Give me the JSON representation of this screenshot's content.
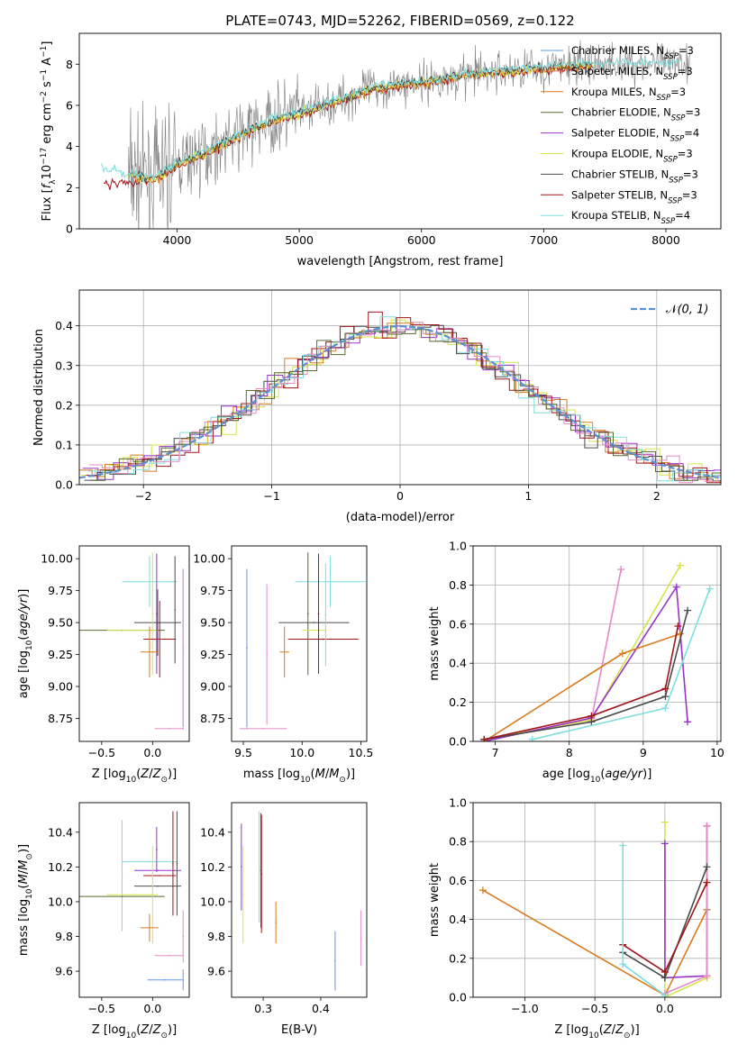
{
  "title": "PLATE=0743, MJD=52262, FIBERID=0569, z=0.122",
  "colors": {
    "chabrier_miles": "#6495ED",
    "salpeter_miles": "#E07A5F",
    "kroupa_miles": "#D97B1E",
    "chabrier_elodie": "#556B2F",
    "salpeter_elodie": "#9932CC",
    "kroupa_elodie": "#D7E34B",
    "chabrier_stelib": "#4B4B4B",
    "salpeter_stelib": "#A0151A",
    "kroupa_stelib": "#7FDDDD",
    "pink": "#E38AC8",
    "data": "#7F7F7F",
    "gauss": "#5B8FD4"
  },
  "chart_data": [
    {
      "id": "spectrum",
      "type": "line",
      "xlabel": "wavelength [Angstrom, rest frame]",
      "ylabel": "Flux [f_λ 10^-17 erg cm^-2 s^-1 A^-1]",
      "xlim": [
        3200,
        8450
      ],
      "ylim": [
        0,
        9.5
      ],
      "xticks": [
        "4000",
        "5000",
        "6000",
        "7000",
        "8000"
      ],
      "yticks": [
        "0",
        "2",
        "4",
        "6",
        "8"
      ],
      "legend": [
        {
          "label": "Chabrier MILES, N_SSP=3",
          "color_key": "chabrier_miles"
        },
        {
          "label": "Salpeter MILES, N_SSP=3",
          "color_key": "salpeter_miles"
        },
        {
          "label": "Kroupa MILES, N_SSP=3",
          "color_key": "kroupa_miles"
        },
        {
          "label": "Chabrier ELODIE, N_SSP=3",
          "color_key": "chabrier_elodie"
        },
        {
          "label": "Salpeter ELODIE, N_SSP=4",
          "color_key": "salpeter_elodie"
        },
        {
          "label": "Kroupa ELODIE, N_SSP=3",
          "color_key": "kroupa_elodie"
        },
        {
          "label": "Chabrier STELIB, N_SSP=3",
          "color_key": "chabrier_stelib"
        },
        {
          "label": "Salpeter STELIB, N_SSP=3",
          "color_key": "salpeter_stelib"
        },
        {
          "label": "Kroupa STELIB, N_SSP=4",
          "color_key": "kroupa_stelib"
        }
      ],
      "model_continuum": {
        "x": [
          3400,
          3600,
          3800,
          4000,
          4200,
          4400,
          4600,
          4800,
          5000,
          5200,
          5400,
          5600,
          5800,
          6000,
          6200,
          6400,
          6600,
          6800,
          7000,
          7200,
          7400
        ],
        "y": [
          2.8,
          2.6,
          2.4,
          3.1,
          3.6,
          4.2,
          4.8,
          5.3,
          5.6,
          6.0,
          6.4,
          6.8,
          7.0,
          7.1,
          7.3,
          7.5,
          7.6,
          7.7,
          7.8,
          7.9,
          8.0
        ]
      }
    },
    {
      "id": "residuals",
      "type": "line",
      "xlabel": "(data-model)/error",
      "ylabel": "Normed distribution",
      "xlim": [
        -2.5,
        2.5
      ],
      "ylim": [
        0,
        0.49
      ],
      "xticks": [
        "−2",
        "−1",
        "0",
        "1",
        "2"
      ],
      "yticks": [
        "0.0",
        "0.1",
        "0.2",
        "0.3",
        "0.4"
      ],
      "grid": true,
      "legend": "N(0,1)",
      "gaussian": {
        "mu": 0,
        "sigma": 1
      }
    },
    {
      "id": "age_vs_Z",
      "type": "scatter",
      "xlabel": "Z [log10(Z/Z⊙)]",
      "ylabel": "age [log10(age/yr)]",
      "xlim": [
        -0.72,
        0.36
      ],
      "ylim": [
        8.57,
        10.1
      ],
      "xticks": [
        "−0.5",
        "0.0"
      ],
      "yticks": [
        "8.75",
        "9.00",
        "9.25",
        "9.50",
        "9.75",
        "10.00"
      ],
      "points": [
        {
          "x": -0.03,
          "y": 9.82,
          "xerr": 0.27,
          "yerr": 0.2,
          "c": "kroupa_stelib"
        },
        {
          "x": 0.05,
          "y": 9.5,
          "xerr": 0.23,
          "yerr": 0.26,
          "c": "chabrier_stelib"
        },
        {
          "x": -0.3,
          "y": 9.44,
          "xerr": 0.42,
          "yerr": 0.0,
          "c": "chabrier_elodie"
        },
        {
          "x": -0.2,
          "y": 9.44,
          "xerr": 0.25,
          "yerr": 0.0,
          "c": "kroupa_elodie"
        },
        {
          "x": 0.0,
          "y": 9.57,
          "xerr": 0.0,
          "yerr": 0.48,
          "c": "kroupa_elodie"
        },
        {
          "x": 0.07,
          "y": 9.37,
          "xerr": 0.16,
          "yerr": 0.3,
          "c": "salpeter_stelib"
        },
        {
          "x": 0.04,
          "y": 9.57,
          "xerr": 0.0,
          "yerr": 0.47,
          "c": "salpeter_elodie"
        },
        {
          "x": -0.03,
          "y": 9.27,
          "xerr": 0.09,
          "yerr": 0.2,
          "c": "kroupa_miles"
        },
        {
          "x": 0.3,
          "y": 9.3,
          "xerr": 0.0,
          "yerr": 0.62,
          "c": "chabrier_miles"
        },
        {
          "x": 0.3,
          "y": 8.67,
          "xerr": 0.0,
          "yerr": 0.0,
          "c": "chabrier_miles"
        },
        {
          "x": 0.16,
          "y": 8.67,
          "xerr": 0.14,
          "yerr": 0.0,
          "c": "pink"
        },
        {
          "x": 0.3,
          "y": 9.3,
          "xerr": 0.0,
          "yerr": 0.62,
          "c": "pink"
        },
        {
          "x": 0.22,
          "y": 9.6,
          "xerr": 0.0,
          "yerr": 0.42,
          "c": "chabrier_stelib"
        }
      ]
    },
    {
      "id": "age_vs_mass",
      "type": "scatter",
      "xlabel": "mass [log10(M/M⊙)]",
      "ylabel": "",
      "xlim": [
        9.4,
        10.55
      ],
      "ylim": [
        8.57,
        10.1
      ],
      "xticks": [
        "9.5",
        "10.0",
        "10.5"
      ],
      "yticks": [
        "8.75",
        "9.00",
        "9.25",
        "9.50",
        "9.75",
        "10.00"
      ],
      "points": [
        {
          "x": 10.24,
          "y": 9.82,
          "xerr": 0.3,
          "yerr": 0.2,
          "c": "kroupa_stelib"
        },
        {
          "x": 10.1,
          "y": 9.5,
          "xerr": 0.3,
          "yerr": 0.0,
          "c": "chabrier_stelib"
        },
        {
          "x": 10.05,
          "y": 9.57,
          "xerr": 0.0,
          "yerr": 0.48,
          "c": "chabrier_elodie"
        },
        {
          "x": 10.1,
          "y": 9.44,
          "xerr": 0.1,
          "yerr": 0.0,
          "c": "kroupa_elodie"
        },
        {
          "x": 10.18,
          "y": 9.37,
          "xerr": 0.3,
          "yerr": 0.0,
          "c": "salpeter_stelib"
        },
        {
          "x": 10.14,
          "y": 9.57,
          "xerr": 0.0,
          "yerr": 0.47,
          "c": "salpeter_stelib"
        },
        {
          "x": 9.85,
          "y": 9.27,
          "xerr": 0.04,
          "yerr": 0.2,
          "c": "kroupa_miles"
        },
        {
          "x": 9.53,
          "y": 9.3,
          "xerr": 0.0,
          "yerr": 0.62,
          "c": "chabrier_miles"
        },
        {
          "x": 9.53,
          "y": 8.67,
          "xerr": 0.0,
          "yerr": 0.0,
          "c": "chabrier_miles"
        },
        {
          "x": 9.67,
          "y": 8.67,
          "xerr": 0.2,
          "yerr": 0.0,
          "c": "pink"
        },
        {
          "x": 9.7,
          "y": 9.25,
          "xerr": 0.0,
          "yerr": 0.55,
          "c": "pink"
        },
        {
          "x": 10.2,
          "y": 9.56,
          "xerr": 0.0,
          "yerr": 0.4,
          "c": "kroupa_stelib"
        }
      ]
    },
    {
      "id": "weight_vs_age",
      "type": "line",
      "xlabel": "age [log10(age/yr)]",
      "ylabel": "mass weight",
      "xlim": [
        6.7,
        10.05
      ],
      "ylim": [
        0,
        1.0
      ],
      "xticks": [
        "7",
        "8",
        "9",
        "10"
      ],
      "yticks": [
        "0.0",
        "0.2",
        "0.4",
        "0.6",
        "0.8",
        "1.0"
      ],
      "grid": true,
      "series": [
        {
          "c": "pink",
          "x": [
            6.85,
            8.3,
            8.7
          ],
          "y": [
            0.01,
            0.11,
            0.88
          ]
        },
        {
          "c": "kroupa_elodie",
          "x": [
            6.85,
            8.3,
            9.5
          ],
          "y": [
            0.01,
            0.11,
            0.9
          ]
        },
        {
          "c": "salpeter_elodie",
          "x": [
            6.85,
            8.3,
            9.45,
            9.6
          ],
          "y": [
            0.0,
            0.12,
            0.79,
            0.1
          ]
        },
        {
          "c": "kroupa_miles",
          "x": [
            6.85,
            8.72,
            9.5
          ],
          "y": [
            0.0,
            0.45,
            0.55
          ]
        },
        {
          "c": "chabrier_stelib",
          "x": [
            6.85,
            8.3,
            9.3,
            9.6
          ],
          "y": [
            0.01,
            0.1,
            0.23,
            0.67
          ]
        },
        {
          "c": "salpeter_stelib",
          "x": [
            6.85,
            8.3,
            9.3,
            9.47
          ],
          "y": [
            0.01,
            0.13,
            0.27,
            0.59
          ]
        },
        {
          "c": "kroupa_stelib",
          "x": [
            7.5,
            9.3,
            9.9
          ],
          "y": [
            0.01,
            0.17,
            0.78
          ]
        }
      ]
    },
    {
      "id": "mass_vs_Z",
      "type": "scatter",
      "xlabel": "Z [log10(Z/Z⊙)]",
      "ylabel": "mass [log10(M/M⊙)]",
      "xlim": [
        -0.72,
        0.36
      ],
      "ylim": [
        9.45,
        10.57
      ],
      "xticks": [
        "−0.5",
        "0.0"
      ],
      "yticks": [
        "9.6",
        "9.8",
        "10.0",
        "10.2",
        "10.4"
      ],
      "points": [
        {
          "x": -0.03,
          "y": 10.23,
          "xerr": 0.27,
          "yerr": 0.0,
          "c": "kroupa_stelib"
        },
        {
          "x": -0.3,
          "y": 10.15,
          "xerr": 0.0,
          "yerr": 0.32,
          "c": "kroupa_stelib"
        },
        {
          "x": 0.05,
          "y": 10.18,
          "xerr": 0.23,
          "yerr": 0.0,
          "c": "salpeter_elodie"
        },
        {
          "x": 0.04,
          "y": 10.3,
          "xerr": 0.0,
          "yerr": 0.13,
          "c": "salpeter_elodie"
        },
        {
          "x": 0.07,
          "y": 10.15,
          "xerr": 0.16,
          "yerr": 0.0,
          "c": "salpeter_stelib"
        },
        {
          "x": 0.05,
          "y": 10.09,
          "xerr": 0.23,
          "yerr": 0.0,
          "c": "chabrier_stelib"
        },
        {
          "x": -0.3,
          "y": 10.03,
          "xerr": 0.42,
          "yerr": 0.0,
          "c": "chabrier_elodie"
        },
        {
          "x": -0.2,
          "y": 10.04,
          "xerr": 0.25,
          "yerr": 0.0,
          "c": "kroupa_elodie"
        },
        {
          "x": 0.0,
          "y": 10.04,
          "xerr": 0.0,
          "yerr": 0.28,
          "c": "kroupa_elodie"
        },
        {
          "x": -0.03,
          "y": 9.85,
          "xerr": 0.09,
          "yerr": 0.08,
          "c": "kroupa_miles"
        },
        {
          "x": 0.2,
          "y": 10.22,
          "xerr": 0.0,
          "yerr": 0.3,
          "c": "salpeter_stelib"
        },
        {
          "x": 0.3,
          "y": 9.55,
          "xerr": 0.0,
          "yerr": 0.06,
          "c": "chabrier_miles"
        },
        {
          "x": 0.12,
          "y": 9.55,
          "xerr": 0.17,
          "yerr": 0.0,
          "c": "chabrier_miles"
        },
        {
          "x": 0.3,
          "y": 9.8,
          "xerr": 0.0,
          "yerr": 0.15,
          "c": "pink"
        },
        {
          "x": 0.16,
          "y": 9.69,
          "xerr": 0.14,
          "yerr": 0.0,
          "c": "pink"
        },
        {
          "x": 0.24,
          "y": 10.22,
          "xerr": 0.0,
          "yerr": 0.3,
          "c": "chabrier_stelib"
        }
      ]
    },
    {
      "id": "mass_vs_ebv",
      "type": "scatter",
      "xlabel": "E(B-V)",
      "ylabel": "",
      "xlim": [
        0.245,
        0.48
      ],
      "ylim": [
        9.45,
        10.57
      ],
      "xticks": [
        "0.3",
        "0.4"
      ],
      "yticks": [
        "9.6",
        "9.8",
        "10.0",
        "10.2",
        "10.4"
      ],
      "points": [
        {
          "x": 0.262,
          "y": 10.2,
          "xerr": 0.0,
          "yerr": 0.25,
          "c": "salpeter_elodie"
        },
        {
          "x": 0.265,
          "y": 10.04,
          "xerr": 0.0,
          "yerr": 0.28,
          "c": "kroupa_elodie"
        },
        {
          "x": 0.293,
          "y": 10.2,
          "xerr": 0.0,
          "yerr": 0.32,
          "c": "kroupa_stelib"
        },
        {
          "x": 0.296,
          "y": 10.18,
          "xerr": 0.0,
          "yerr": 0.33,
          "c": "chabrier_stelib"
        },
        {
          "x": 0.297,
          "y": 10.16,
          "xerr": 0.0,
          "yerr": 0.34,
          "c": "salpeter_stelib"
        },
        {
          "x": 0.322,
          "y": 9.88,
          "xerr": 0.0,
          "yerr": 0.12,
          "c": "kroupa_miles"
        },
        {
          "x": 0.425,
          "y": 9.66,
          "xerr": 0.0,
          "yerr": 0.17,
          "c": "chabrier_miles"
        },
        {
          "x": 0.47,
          "y": 9.79,
          "xerr": 0.0,
          "yerr": 0.16,
          "c": "pink"
        }
      ]
    },
    {
      "id": "weight_vs_Z",
      "type": "line",
      "xlabel": "Z [log10(Z/Z⊙)]",
      "ylabel": "mass weight",
      "xlim": [
        -1.37,
        0.4
      ],
      "ylim": [
        0,
        1.0
      ],
      "xticks": [
        "−1.0",
        "−0.5",
        "0.0"
      ],
      "yticks": [
        "0.0",
        "0.2",
        "0.4",
        "0.6",
        "0.8",
        "1.0"
      ],
      "grid": true,
      "series": [
        {
          "c": "kroupa_miles",
          "x": [
            -1.3,
            0.0,
            0.3
          ],
          "y": [
            0.55,
            0.01,
            0.45
          ]
        },
        {
          "c": "kroupa_elodie",
          "x": [
            0.0,
            0.0,
            0.3
          ],
          "y": [
            0.9,
            0.0,
            0.1
          ]
        },
        {
          "c": "salpeter_elodie",
          "x": [
            0.0,
            0.0,
            0.3,
            0.3
          ],
          "y": [
            0.79,
            0.1,
            0.11,
            0.88
          ]
        },
        {
          "c": "pink",
          "x": [
            0.0,
            0.3,
            0.3
          ],
          "y": [
            0.02,
            0.11,
            0.88
          ]
        },
        {
          "c": "chabrier_stelib",
          "x": [
            -0.3,
            0.0,
            0.3
          ],
          "y": [
            0.23,
            0.1,
            0.67
          ]
        },
        {
          "c": "salpeter_stelib",
          "x": [
            -0.3,
            0.0,
            0.3
          ],
          "y": [
            0.27,
            0.13,
            0.59
          ]
        },
        {
          "c": "kroupa_stelib",
          "x": [
            -0.3,
            -0.3,
            0.0
          ],
          "y": [
            0.78,
            0.17,
            0.01
          ]
        }
      ]
    }
  ]
}
